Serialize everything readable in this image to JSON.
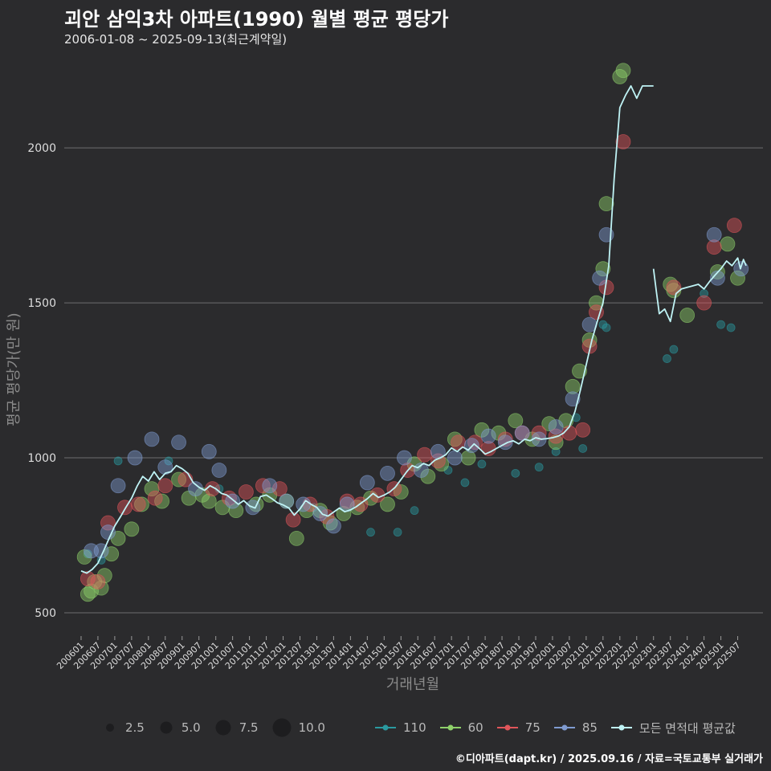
{
  "title": "괴안 삼익3차 아파트(1990) 월별 평균 평당가",
  "subtitle": "2006-01-08 ~ 2025-09-13(최근계약일)",
  "credit": "©디아파트(dapt.kr) / 2025.09.16 / 자료=국토교통부 실거래가",
  "chart_data": {
    "type": "scatter",
    "title": "괴안 삼익3차 아파트(1990) 월별 평균 평당가",
    "xlabel": "거래년월",
    "ylabel": "평균 평당가(만 원)",
    "ylim": [
      430,
      2270
    ],
    "yticks": [
      500,
      1000,
      1500,
      2000
    ],
    "x_range": [
      "2006-01",
      "2025-09"
    ],
    "x_tick_labels": [
      "200601",
      "200607",
      "200701",
      "200707",
      "200801",
      "200807",
      "200901",
      "200907",
      "201001",
      "201007",
      "201101",
      "201107",
      "201201",
      "201207",
      "201301",
      "201307",
      "201401",
      "201407",
      "201501",
      "201507",
      "201601",
      "201607",
      "201701",
      "201707",
      "201801",
      "201807",
      "201901",
      "201907",
      "202001",
      "202007",
      "202101",
      "202107",
      "202201",
      "202207",
      "202301",
      "202307",
      "202401",
      "202407",
      "202501",
      "202507"
    ],
    "size_legend": {
      "values": [
        2.5,
        5.0,
        7.5,
        10.0
      ],
      "labels": [
        "2.5",
        "5.0",
        "7.5",
        "10.0"
      ]
    },
    "series_colors": {
      "110": "#2a9aa0",
      "60": "#8ed06a",
      "75": "#e0555a",
      "85": "#7f9bd0",
      "avg": "#bff3f5"
    },
    "series": [
      {
        "name": "110",
        "points": [
          [
            2006.2,
            690
          ],
          [
            2006.6,
            670
          ],
          [
            2007.1,
            990
          ],
          [
            2008.6,
            990
          ],
          [
            2010.1,
            900
          ],
          [
            2012.9,
            840
          ],
          [
            2014.6,
            760
          ],
          [
            2015.4,
            760
          ],
          [
            2015.9,
            830
          ],
          [
            2016.9,
            960
          ],
          [
            2017.4,
            920
          ],
          [
            2017.9,
            980
          ],
          [
            2018.9,
            950
          ],
          [
            2019.6,
            970
          ],
          [
            2020.1,
            1020
          ],
          [
            2020.7,
            1130
          ],
          [
            2020.9,
            1030
          ],
          [
            2021.5,
            1430
          ],
          [
            2021.6,
            1420
          ],
          [
            2023.4,
            1320
          ],
          [
            2023.6,
            1350
          ],
          [
            2024.5,
            1530
          ],
          [
            2025.0,
            1430
          ],
          [
            2025.3,
            1420
          ]
        ]
      },
      {
        "name": "60",
        "points": [
          [
            2006.1,
            680
          ],
          [
            2006.2,
            560
          ],
          [
            2006.3,
            570
          ],
          [
            2006.4,
            600
          ],
          [
            2006.6,
            580
          ],
          [
            2006.7,
            620
          ],
          [
            2006.9,
            690
          ],
          [
            2007.1,
            740
          ],
          [
            2007.5,
            770
          ],
          [
            2007.8,
            850
          ],
          [
            2008.1,
            900
          ],
          [
            2008.4,
            860
          ],
          [
            2008.9,
            930
          ],
          [
            2009.2,
            870
          ],
          [
            2009.6,
            880
          ],
          [
            2009.8,
            860
          ],
          [
            2010.2,
            840
          ],
          [
            2010.6,
            830
          ],
          [
            2011.2,
            850
          ],
          [
            2011.6,
            880
          ],
          [
            2012.1,
            860
          ],
          [
            2012.4,
            740
          ],
          [
            2012.7,
            830
          ],
          [
            2013.1,
            830
          ],
          [
            2013.4,
            790
          ],
          [
            2013.8,
            820
          ],
          [
            2014.2,
            840
          ],
          [
            2014.6,
            870
          ],
          [
            2015.1,
            850
          ],
          [
            2015.5,
            890
          ],
          [
            2015.9,
            980
          ],
          [
            2016.3,
            940
          ],
          [
            2016.7,
            980
          ],
          [
            2017.1,
            1060
          ],
          [
            2017.5,
            1000
          ],
          [
            2017.9,
            1090
          ],
          [
            2018.4,
            1080
          ],
          [
            2018.9,
            1120
          ],
          [
            2019.4,
            1060
          ],
          [
            2019.9,
            1110
          ],
          [
            2020.1,
            1050
          ],
          [
            2020.4,
            1120
          ],
          [
            2020.6,
            1230
          ],
          [
            2020.8,
            1280
          ],
          [
            2021.1,
            1380
          ],
          [
            2021.3,
            1500
          ],
          [
            2021.5,
            1610
          ],
          [
            2021.6,
            1820
          ],
          [
            2022.0,
            2230
          ],
          [
            2022.1,
            2250
          ],
          [
            2023.5,
            1560
          ],
          [
            2023.6,
            1540
          ],
          [
            2024.0,
            1460
          ],
          [
            2024.9,
            1600
          ],
          [
            2025.2,
            1690
          ],
          [
            2025.5,
            1580
          ]
        ]
      },
      {
        "name": "75",
        "points": [
          [
            2006.2,
            610
          ],
          [
            2006.5,
            600
          ],
          [
            2006.8,
            790
          ],
          [
            2007.3,
            840
          ],
          [
            2007.7,
            850
          ],
          [
            2008.2,
            870
          ],
          [
            2008.5,
            910
          ],
          [
            2009.1,
            930
          ],
          [
            2009.9,
            900
          ],
          [
            2010.4,
            870
          ],
          [
            2010.9,
            890
          ],
          [
            2011.4,
            910
          ],
          [
            2011.9,
            900
          ],
          [
            2012.3,
            800
          ],
          [
            2012.8,
            850
          ],
          [
            2013.3,
            810
          ],
          [
            2013.9,
            860
          ],
          [
            2014.3,
            850
          ],
          [
            2014.8,
            880
          ],
          [
            2015.3,
            900
          ],
          [
            2015.7,
            960
          ],
          [
            2016.2,
            1010
          ],
          [
            2016.6,
            990
          ],
          [
            2017.2,
            1050
          ],
          [
            2017.7,
            1050
          ],
          [
            2018.1,
            1030
          ],
          [
            2018.6,
            1060
          ],
          [
            2019.1,
            1080
          ],
          [
            2019.6,
            1080
          ],
          [
            2020.1,
            1070
          ],
          [
            2020.5,
            1080
          ],
          [
            2020.9,
            1090
          ],
          [
            2021.1,
            1360
          ],
          [
            2021.3,
            1470
          ],
          [
            2021.6,
            1550
          ],
          [
            2022.1,
            2020
          ],
          [
            2023.6,
            1550
          ],
          [
            2024.5,
            1500
          ],
          [
            2024.8,
            1680
          ],
          [
            2025.4,
            1750
          ]
        ]
      },
      {
        "name": "85",
        "points": [
          [
            2006.3,
            700
          ],
          [
            2006.6,
            700
          ],
          [
            2006.8,
            760
          ],
          [
            2007.1,
            910
          ],
          [
            2007.6,
            1000
          ],
          [
            2008.1,
            1060
          ],
          [
            2008.5,
            970
          ],
          [
            2008.9,
            1050
          ],
          [
            2009.4,
            900
          ],
          [
            2009.8,
            1020
          ],
          [
            2010.1,
            960
          ],
          [
            2010.5,
            860
          ],
          [
            2011.1,
            840
          ],
          [
            2011.6,
            910
          ],
          [
            2012.1,
            860
          ],
          [
            2012.6,
            850
          ],
          [
            2013.1,
            820
          ],
          [
            2013.5,
            780
          ],
          [
            2013.9,
            850
          ],
          [
            2014.5,
            920
          ],
          [
            2015.1,
            950
          ],
          [
            2015.6,
            1000
          ],
          [
            2016.1,
            960
          ],
          [
            2016.6,
            1020
          ],
          [
            2017.1,
            1000
          ],
          [
            2017.6,
            1040
          ],
          [
            2018.1,
            1070
          ],
          [
            2018.6,
            1050
          ],
          [
            2019.1,
            1080
          ],
          [
            2019.6,
            1060
          ],
          [
            2020.1,
            1100
          ],
          [
            2020.6,
            1190
          ],
          [
            2021.1,
            1430
          ],
          [
            2021.4,
            1580
          ],
          [
            2021.6,
            1720
          ],
          [
            2024.8,
            1720
          ],
          [
            2024.9,
            1580
          ],
          [
            2025.6,
            1610
          ]
        ]
      }
    ],
    "avg_line": [
      [
        [
          2006.0,
          635
        ],
        [
          2006.17,
          628
        ],
        [
          2006.33,
          640
        ],
        [
          2006.5,
          660
        ],
        [
          2006.67,
          700
        ],
        [
          2006.83,
          740
        ],
        [
          2007.0,
          780
        ],
        [
          2007.17,
          810
        ],
        [
          2007.33,
          840
        ],
        [
          2007.5,
          870
        ],
        [
          2007.67,
          910
        ],
        [
          2007.83,
          940
        ],
        [
          2008.0,
          925
        ],
        [
          2008.17,
          955
        ],
        [
          2008.33,
          930
        ],
        [
          2008.5,
          950
        ],
        [
          2008.67,
          955
        ],
        [
          2008.83,
          975
        ],
        [
          2009.0,
          965
        ],
        [
          2009.17,
          950
        ],
        [
          2009.33,
          920
        ],
        [
          2009.5,
          905
        ],
        [
          2009.67,
          895
        ],
        [
          2009.83,
          910
        ],
        [
          2010.0,
          900
        ],
        [
          2010.17,
          885
        ],
        [
          2010.33,
          880
        ],
        [
          2010.5,
          865
        ],
        [
          2010.67,
          850
        ],
        [
          2010.83,
          862
        ],
        [
          2011.0,
          845
        ],
        [
          2011.17,
          838
        ],
        [
          2011.33,
          875
        ],
        [
          2011.5,
          880
        ],
        [
          2011.67,
          868
        ],
        [
          2011.83,
          855
        ],
        [
          2012.0,
          848
        ],
        [
          2012.17,
          838
        ],
        [
          2012.33,
          815
        ],
        [
          2012.5,
          835
        ],
        [
          2012.67,
          862
        ],
        [
          2012.83,
          850
        ],
        [
          2013.0,
          840
        ],
        [
          2013.17,
          818
        ],
        [
          2013.33,
          812
        ],
        [
          2013.5,
          825
        ],
        [
          2013.67,
          838
        ],
        [
          2013.83,
          826
        ],
        [
          2014.0,
          832
        ],
        [
          2014.17,
          842
        ],
        [
          2014.33,
          855
        ],
        [
          2014.5,
          868
        ],
        [
          2014.67,
          885
        ],
        [
          2014.83,
          872
        ],
        [
          2015.0,
          880
        ],
        [
          2015.17,
          890
        ],
        [
          2015.33,
          905
        ],
        [
          2015.5,
          930
        ],
        [
          2015.67,
          955
        ],
        [
          2015.83,
          975
        ],
        [
          2016.0,
          968
        ],
        [
          2016.17,
          982
        ],
        [
          2016.33,
          975
        ],
        [
          2016.5,
          992
        ],
        [
          2016.67,
          1000
        ],
        [
          2016.83,
          1010
        ],
        [
          2017.0,
          1032
        ],
        [
          2017.17,
          1020
        ],
        [
          2017.33,
          1035
        ],
        [
          2017.5,
          1025
        ],
        [
          2017.67,
          1045
        ],
        [
          2017.83,
          1030
        ],
        [
          2018.0,
          1012
        ],
        [
          2018.17,
          1020
        ],
        [
          2018.33,
          1030
        ],
        [
          2018.5,
          1040
        ],
        [
          2018.67,
          1050
        ],
        [
          2018.83,
          1055
        ],
        [
          2019.0,
          1045
        ],
        [
          2019.17,
          1060
        ],
        [
          2019.33,
          1055
        ],
        [
          2019.5,
          1065
        ],
        [
          2019.67,
          1060
        ],
        [
          2019.83,
          1062
        ],
        [
          2020.0,
          1065
        ],
        [
          2020.17,
          1070
        ],
        [
          2020.33,
          1080
        ],
        [
          2020.5,
          1100
        ],
        [
          2020.67,
          1150
        ],
        [
          2020.83,
          1220
        ],
        [
          2021.0,
          1300
        ],
        [
          2021.17,
          1380
        ],
        [
          2021.33,
          1440
        ],
        [
          2021.5,
          1500
        ],
        [
          2021.67,
          1620
        ],
        [
          2021.83,
          1900
        ],
        [
          2022.0,
          2130
        ],
        [
          2022.17,
          2170
        ],
        [
          2022.33,
          2200
        ],
        [
          2022.5,
          2160
        ],
        [
          2022.67,
          2200
        ],
        [
          2022.83,
          2200
        ],
        [
          2023.0,
          2200
        ]
      ],
      [
        [
          2023.0,
          1610
        ],
        [
          2023.08,
          1540
        ],
        [
          2023.17,
          1465
        ],
        [
          2023.33,
          1480
        ],
        [
          2023.5,
          1440
        ],
        [
          2023.67,
          1530
        ],
        [
          2023.83,
          1545
        ],
        [
          2024.0,
          1550
        ],
        [
          2024.17,
          1555
        ],
        [
          2024.33,
          1560
        ],
        [
          2024.5,
          1545
        ],
        [
          2024.67,
          1570
        ],
        [
          2024.83,
          1590
        ],
        [
          2025.0,
          1610
        ],
        [
          2025.17,
          1635
        ],
        [
          2025.33,
          1620
        ],
        [
          2025.5,
          1645
        ],
        [
          2025.58,
          1610
        ],
        [
          2025.67,
          1640
        ],
        [
          2025.75,
          1620
        ]
      ]
    ]
  },
  "legend": {
    "sizes": [
      "2.5",
      "5.0",
      "7.5",
      "10.0"
    ],
    "series": [
      {
        "label": "110",
        "color": "#2a9aa0"
      },
      {
        "label": "60",
        "color": "#8ed06a"
      },
      {
        "label": "75",
        "color": "#e0555a"
      },
      {
        "label": "85",
        "color": "#7f9bd0"
      },
      {
        "label": "모든 면적대 평균값",
        "color": "#bff3f5"
      }
    ]
  }
}
